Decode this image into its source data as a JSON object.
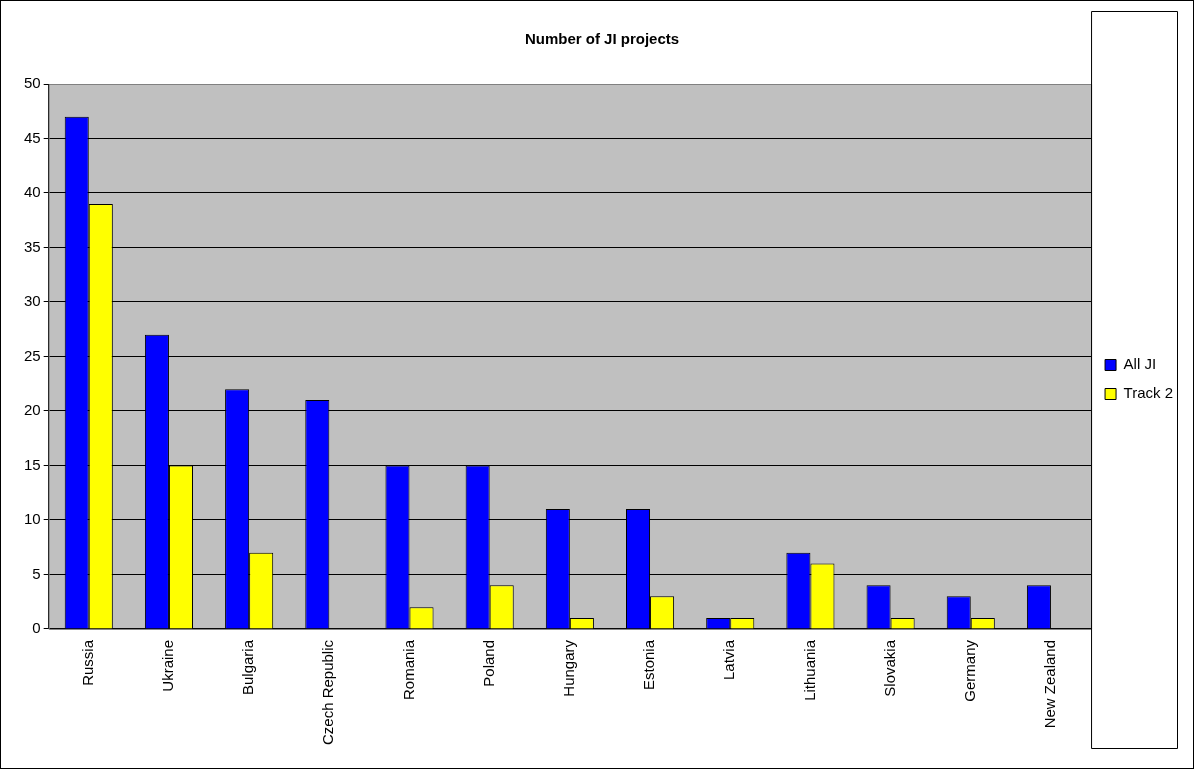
{
  "chart_data": {
    "type": "bar",
    "title": "Number of JI projects",
    "categories": [
      "Russia",
      "Ukraine",
      "Bulgaria",
      "Czech Republic",
      "Romania",
      "Poland",
      "Hungary",
      "Estonia",
      "Latvia",
      "Lithuania",
      "Slovakia",
      "Germany",
      "New Zealand"
    ],
    "series": [
      {
        "name": "All JI",
        "color": "#0000ff",
        "values": [
          47,
          27,
          22,
          21,
          15,
          15,
          11,
          11,
          1,
          7,
          4,
          3,
          4
        ]
      },
      {
        "name": "Track 2",
        "color": "#ffff00",
        "values": [
          39,
          15,
          7,
          0,
          2,
          4,
          1,
          3,
          1,
          6,
          1,
          1,
          0
        ]
      }
    ],
    "ylim": [
      0,
      50
    ],
    "yticks": [
      0,
      5,
      10,
      15,
      20,
      25,
      30,
      35,
      40,
      45,
      50
    ],
    "grid": "y",
    "legend": "right"
  }
}
